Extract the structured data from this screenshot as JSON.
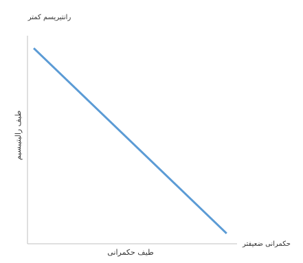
{
  "chart_data": {
    "type": "line",
    "title": "",
    "xlabel": "طيف حكمرانى",
    "ylabel": "طيف راليتيبسيم",
    "x_end_label": "حکمرانى ضعيفتر",
    "y_end_label": "رانتيريسم كمتر",
    "xlim": [
      0,
      1
    ],
    "ylim": [
      0,
      1
    ],
    "grid": false,
    "legend": "none",
    "series": [
      {
        "x": [
          0.03,
          0.95
        ],
        "y": [
          0.94,
          0.05
        ],
        "color": "#5B9BD5"
      }
    ]
  }
}
